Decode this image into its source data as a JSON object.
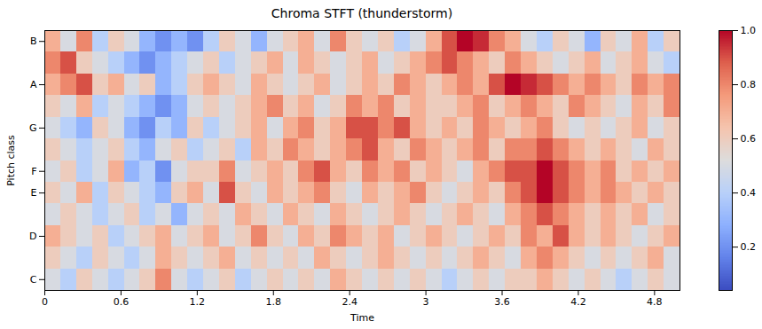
{
  "chart_data": {
    "type": "heatmap",
    "title": "Chroma STFT (thunderstorm)",
    "x_label": "Time",
    "y_label": "Pitch class",
    "categories": [
      "C",
      null,
      "D",
      null,
      "E",
      "F",
      null,
      "G",
      null,
      "A",
      null,
      "B"
    ],
    "x": [
      0,
      0.125,
      0.25,
      0.375,
      0.5,
      0.625,
      0.75,
      0.875,
      1,
      1.125,
      1.25,
      1.375,
      1.5,
      1.625,
      1.75,
      1.875,
      2,
      2.125,
      2.25,
      2.375,
      2.5,
      2.625,
      2.75,
      2.875,
      3,
      3.125,
      3.25,
      3.375,
      3.5,
      3.625,
      3.75,
      3.875,
      4,
      4.125,
      4.25,
      4.375,
      4.5,
      4.625,
      4.75,
      4.875
    ],
    "xlim": [
      0,
      5.0
    ],
    "xticks": [
      0,
      0.6,
      1.2,
      1.8,
      2.4,
      3,
      3.6,
      4.2,
      4.8
    ],
    "cells": [
      [
        0.5,
        0.4,
        0.6,
        0.5,
        0.4,
        0.5,
        0.6,
        0.8,
        0.5,
        0.4,
        0.5,
        0.6,
        0.4,
        0.5,
        0.6,
        0.5,
        0.6,
        0.5,
        0.7,
        0.6,
        0.5,
        0.6,
        0.5,
        0.6,
        0.5,
        0.4,
        0.5,
        0.6,
        0.5,
        0.6,
        0.6,
        0.7,
        0.6,
        0.5,
        0.6,
        0.5,
        0.4,
        0.5,
        0.6,
        0.5
      ],
      [
        0.6,
        0.5,
        0.4,
        0.6,
        0.5,
        0.4,
        0.5,
        0.7,
        0.6,
        0.5,
        0.6,
        0.7,
        0.5,
        0.6,
        0.5,
        0.6,
        0.5,
        0.7,
        0.6,
        0.5,
        0.6,
        0.7,
        0.6,
        0.5,
        0.6,
        0.5,
        0.6,
        0.7,
        0.6,
        0.5,
        0.7,
        0.8,
        0.7,
        0.6,
        0.5,
        0.6,
        0.5,
        0.6,
        0.7,
        0.5
      ],
      [
        0.7,
        0.6,
        0.5,
        0.6,
        0.4,
        0.5,
        0.6,
        0.7,
        0.5,
        0.6,
        0.7,
        0.5,
        0.6,
        0.8,
        0.6,
        0.5,
        0.7,
        0.6,
        0.8,
        0.7,
        0.6,
        0.7,
        0.5,
        0.6,
        0.7,
        0.6,
        0.5,
        0.6,
        0.7,
        0.6,
        0.8,
        0.7,
        0.9,
        0.7,
        0.6,
        0.7,
        0.6,
        0.5,
        0.6,
        0.7
      ],
      [
        0.5,
        0.6,
        0.5,
        0.4,
        0.5,
        0.6,
        0.4,
        0.5,
        0.3,
        0.5,
        0.6,
        0.5,
        0.7,
        0.6,
        0.5,
        0.7,
        0.6,
        0.5,
        0.7,
        0.6,
        0.5,
        0.6,
        0.7,
        0.6,
        0.5,
        0.6,
        0.7,
        0.6,
        0.5,
        0.7,
        0.8,
        0.9,
        0.8,
        0.7,
        0.6,
        0.7,
        0.6,
        0.7,
        0.5,
        0.6
      ],
      [
        0.6,
        0.5,
        0.7,
        0.4,
        0.6,
        0.5,
        0.4,
        0.3,
        0.6,
        0.7,
        0.5,
        0.9,
        0.6,
        0.5,
        0.7,
        0.6,
        0.7,
        0.8,
        0.6,
        0.5,
        0.7,
        0.6,
        0.7,
        0.8,
        0.6,
        0.5,
        0.6,
        0.7,
        0.6,
        0.8,
        0.9,
        1.0,
        0.9,
        0.8,
        0.7,
        0.8,
        0.7,
        0.6,
        0.7,
        0.6
      ],
      [
        0.5,
        0.6,
        0.4,
        0.5,
        0.7,
        0.3,
        0.4,
        0.2,
        0.5,
        0.6,
        0.6,
        0.8,
        0.5,
        0.6,
        0.7,
        0.6,
        0.8,
        0.9,
        0.7,
        0.6,
        0.8,
        0.7,
        0.8,
        0.6,
        0.7,
        0.6,
        0.5,
        0.7,
        0.8,
        0.9,
        0.9,
        1.0,
        0.9,
        0.8,
        0.7,
        0.8,
        0.6,
        0.7,
        0.6,
        0.7
      ],
      [
        0.6,
        0.5,
        0.4,
        0.5,
        0.6,
        0.4,
        0.3,
        0.5,
        0.6,
        0.4,
        0.5,
        0.6,
        0.4,
        0.7,
        0.6,
        0.8,
        0.7,
        0.6,
        0.7,
        0.8,
        0.9,
        0.7,
        0.6,
        0.8,
        0.7,
        0.6,
        0.7,
        0.8,
        0.6,
        0.8,
        0.8,
        0.9,
        0.8,
        0.7,
        0.6,
        0.7,
        0.6,
        0.5,
        0.7,
        0.6
      ],
      [
        0.5,
        0.4,
        0.3,
        0.6,
        0.5,
        0.3,
        0.2,
        0.4,
        0.3,
        0.6,
        0.4,
        0.5,
        0.6,
        0.7,
        0.5,
        0.7,
        0.8,
        0.6,
        0.7,
        0.9,
        0.9,
        0.8,
        0.9,
        0.7,
        0.6,
        0.7,
        0.6,
        0.8,
        0.7,
        0.6,
        0.7,
        0.8,
        0.6,
        0.5,
        0.6,
        0.5,
        0.6,
        0.7,
        0.5,
        0.6
      ],
      [
        0.6,
        0.5,
        0.7,
        0.4,
        0.5,
        0.4,
        0.3,
        0.2,
        0.3,
        0.5,
        0.6,
        0.5,
        0.6,
        0.7,
        0.8,
        0.6,
        0.7,
        0.5,
        0.6,
        0.8,
        0.7,
        0.8,
        0.6,
        0.7,
        0.6,
        0.6,
        0.7,
        0.8,
        0.6,
        0.7,
        0.8,
        0.7,
        0.6,
        0.8,
        0.7,
        0.6,
        0.5,
        0.7,
        0.6,
        0.8
      ],
      [
        0.7,
        0.8,
        0.9,
        0.6,
        0.7,
        0.5,
        0.6,
        0.3,
        0.4,
        0.6,
        0.7,
        0.6,
        0.5,
        0.7,
        0.6,
        0.5,
        0.6,
        0.7,
        0.5,
        0.6,
        0.7,
        0.6,
        0.8,
        0.7,
        0.6,
        0.7,
        0.8,
        0.7,
        0.9,
        1.0,
        0.95,
        0.9,
        0.8,
        0.7,
        0.8,
        0.7,
        0.6,
        0.8,
        0.7,
        0.8
      ],
      [
        0.8,
        0.9,
        0.6,
        0.5,
        0.4,
        0.3,
        0.2,
        0.3,
        0.4,
        0.5,
        0.6,
        0.4,
        0.5,
        0.6,
        0.7,
        0.5,
        0.7,
        0.6,
        0.5,
        0.6,
        0.7,
        0.5,
        0.6,
        0.7,
        0.8,
        0.9,
        0.8,
        0.7,
        0.6,
        0.8,
        0.7,
        0.6,
        0.5,
        0.6,
        0.7,
        0.5,
        0.6,
        0.7,
        0.5,
        0.4
      ],
      [
        0.7,
        0.5,
        0.8,
        0.4,
        0.6,
        0.5,
        0.3,
        0.2,
        0.3,
        0.2,
        0.4,
        0.6,
        0.5,
        0.3,
        0.5,
        0.6,
        0.7,
        0.5,
        0.8,
        0.6,
        0.5,
        0.6,
        0.4,
        0.5,
        0.7,
        0.9,
        1.0,
        0.95,
        0.8,
        0.7,
        0.5,
        0.4,
        0.6,
        0.5,
        0.3,
        0.6,
        0.5,
        0.7,
        0.4,
        0.6
      ]
    ],
    "colorbar": {
      "range": [
        0.04,
        1.0
      ],
      "ticks": [
        0.2,
        0.4,
        0.6,
        0.8,
        {
          "value": 1,
          "label": "1.0"
        }
      ]
    }
  }
}
